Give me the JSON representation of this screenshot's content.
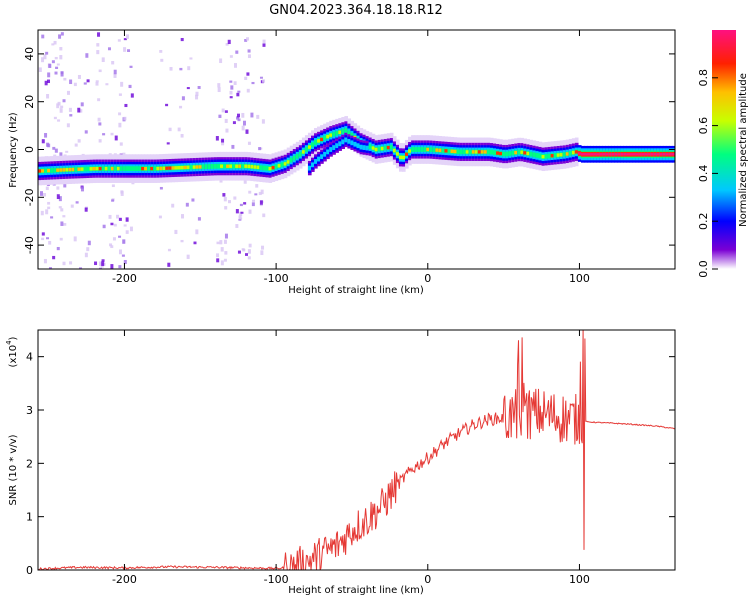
{
  "title": "GN04.2023.364.18.18.R12",
  "colors": {
    "snr_line": "#e53935",
    "colormap": [
      "#ffffff",
      "#6a0dad",
      "#0000ff",
      "#00bfff",
      "#00ff80",
      "#ffff00",
      "#ff8000",
      "#ff0000",
      "#ff1493"
    ]
  },
  "chart_data": [
    {
      "type": "heatmap",
      "xlabel": "Height of straight line (km)",
      "ylabel": "Frequency (Hz)",
      "xlim": [
        -257,
        163
      ],
      "ylim": [
        -50,
        50
      ],
      "xticks": [
        -200,
        -100,
        0,
        100
      ],
      "xtick_labels": [
        "-200",
        "-100",
        "0",
        "100"
      ],
      "yticks": [
        -40,
        -20,
        0,
        20,
        40
      ],
      "ytick_labels": [
        "-40",
        "-20",
        "0",
        "20",
        "40"
      ],
      "colorbar": {
        "label": "Normalized spectral amplitude",
        "range": [
          0,
          1
        ],
        "ticks": [
          0,
          0.2,
          0.4,
          0.6,
          0.8
        ],
        "tick_labels": [
          "0.0",
          "0.2",
          "0.4",
          "0.6",
          "0.8"
        ]
      },
      "ridge": {
        "x": [
          -257,
          -240,
          -220,
          -200,
          -180,
          -160,
          -140,
          -120,
          -105,
          -95,
          -85,
          -75,
          -65,
          -55,
          -45,
          -35,
          -25,
          -18,
          -12,
          -5,
          0,
          20,
          40,
          50,
          60,
          75,
          90,
          97,
          100,
          130,
          163
        ],
        "y": [
          -9,
          -8.5,
          -8,
          -8,
          -8,
          -7.5,
          -7,
          -7,
          -8,
          -6,
          -2,
          3,
          6,
          8,
          3,
          0,
          1,
          -4,
          0,
          0,
          0,
          -1,
          -1,
          -2,
          -1,
          -3,
          -2,
          -1,
          -2,
          -2,
          -2
        ]
      }
    },
    {
      "type": "line",
      "xlabel": "Height of straight line (km)",
      "ylabel": "SNR (10 * v/v)",
      "y_multiplier": "(x10^4)",
      "xlim": [
        -257,
        163
      ],
      "ylim": [
        0,
        4.5
      ],
      "xticks": [
        -200,
        -100,
        0,
        100
      ],
      "xtick_labels": [
        "-200",
        "-100",
        "0",
        "100"
      ],
      "yticks": [
        0,
        1,
        2,
        3,
        4
      ],
      "ytick_labels": [
        "0",
        "1",
        "2",
        "3",
        "4"
      ],
      "series": [
        {
          "x": [
            -257,
            -230,
            -200,
            -170,
            -140,
            -120,
            -100,
            -90,
            -80,
            -70,
            -60,
            -50,
            -40,
            -30,
            -20,
            -10,
            0,
            10,
            20,
            30,
            40,
            50,
            60,
            70,
            80,
            90,
            100,
            104,
            110,
            130,
            150,
            163
          ],
          "y": [
            0.02,
            0.05,
            0.04,
            0.06,
            0.05,
            0.04,
            0.03,
            0.05,
            0.15,
            0.3,
            0.45,
            0.75,
            0.95,
            1.2,
            1.6,
            1.9,
            2.1,
            2.35,
            2.55,
            2.72,
            2.82,
            2.85,
            2.9,
            2.95,
            2.9,
            2.85,
            2.8,
            2.78,
            2.77,
            2.74,
            2.7,
            2.65
          ]
        }
      ]
    }
  ]
}
